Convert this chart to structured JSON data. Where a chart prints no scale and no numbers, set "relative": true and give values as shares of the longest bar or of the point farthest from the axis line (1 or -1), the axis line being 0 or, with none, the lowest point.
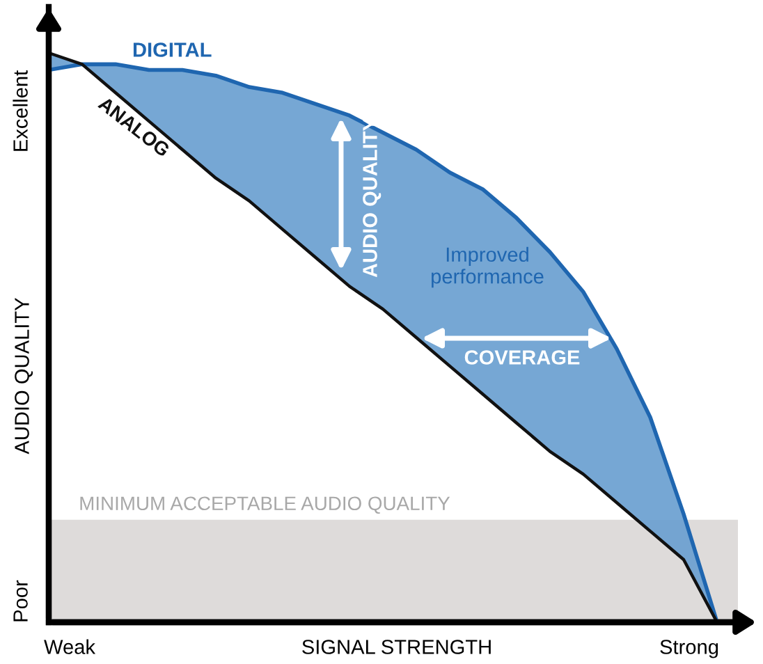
{
  "chart_data": {
    "type": "line",
    "relative": true,
    "xlabel": "SIGNAL STRENGTH",
    "ylabel": "AUDIO QUALITY",
    "categories": [
      null,
      null,
      null,
      null,
      null,
      null,
      null,
      null,
      null,
      null,
      null,
      null,
      null,
      null,
      null,
      null,
      null,
      null,
      null,
      null,
      null
    ],
    "series": [
      {
        "name": "DIGITAL",
        "color": "#1f66b0",
        "values": [
          0.97,
          0.98,
          0.98,
          0.97,
          0.97,
          0.96,
          0.94,
          0.93,
          0.91,
          0.89,
          0.86,
          0.83,
          0.79,
          0.76,
          0.71,
          0.65,
          0.58,
          0.48,
          0.36,
          0.19,
          0
        ]
      },
      {
        "name": "ANALOG",
        "color": "#111111",
        "values": [
          1,
          0.98,
          0.93,
          0.88,
          0.83,
          0.78,
          0.74,
          0.69,
          0.64,
          0.59,
          0.55,
          0.5,
          0.45,
          0.4,
          0.35,
          0.3,
          0.26,
          0.21,
          0.16,
          0.11,
          0
        ]
      }
    ],
    "bands": [
      {
        "axis": "y",
        "from": 0,
        "to": 0.18,
        "label": "MINIMUM ACCEPTABLE AUDIO QUALITY",
        "color": "#dedbda"
      }
    ],
    "annotations": [
      "Excellent",
      "Poor",
      "Weak",
      "Strong",
      "AUDIO QUALITY",
      "Improved\nperformance",
      "COVERAGE"
    ],
    "marker": "none",
    "line_style": "solid"
  }
}
